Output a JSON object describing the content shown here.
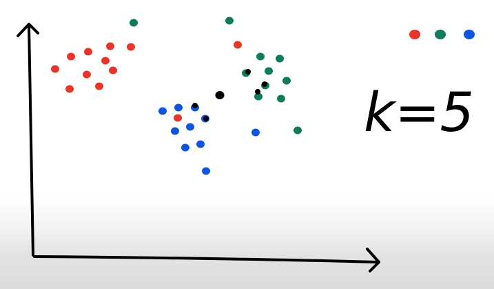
{
  "colors": {
    "red": "#e8352a",
    "green": "#0f7a5c",
    "blue": "#0f55e0",
    "black": "#000000",
    "background": "#ffffff"
  },
  "annotation": {
    "k_text": "k=5"
  },
  "legend": {
    "swatches": [
      "red",
      "green",
      "blue"
    ]
  },
  "points": {
    "red": [
      [
        80,
        100
      ],
      [
        103,
        82
      ],
      [
        128,
        75
      ],
      [
        160,
        67
      ],
      [
        190,
        68
      ],
      [
        153,
        88
      ],
      [
        126,
        108
      ],
      [
        164,
        102
      ],
      [
        101,
        129
      ],
      [
        144,
        125
      ],
      [
        345,
        65
      ],
      [
        258,
        171
      ]
    ],
    "green": [
      [
        194,
        33
      ],
      [
        333,
        30
      ],
      [
        378,
        82
      ],
      [
        406,
        85
      ],
      [
        390,
        103
      ],
      [
        357,
        106
      ],
      [
        416,
        117
      ],
      [
        385,
        124
      ],
      [
        375,
        140
      ],
      [
        408,
        143
      ],
      [
        432,
        189
      ]
    ],
    "blue": [
      [
        236,
        161
      ],
      [
        259,
        156
      ],
      [
        283,
        156
      ],
      [
        298,
        172
      ],
      [
        254,
        190
      ],
      [
        276,
        184
      ],
      [
        269,
        214
      ],
      [
        291,
        209
      ],
      [
        299,
        248
      ],
      [
        371,
        192
      ]
    ],
    "black": [
      [
        319,
        138
      ],
      [
        360,
        104
      ],
      [
        384,
        122
      ],
      [
        374,
        133
      ],
      [
        283,
        153
      ],
      [
        299,
        172
      ]
    ]
  }
}
